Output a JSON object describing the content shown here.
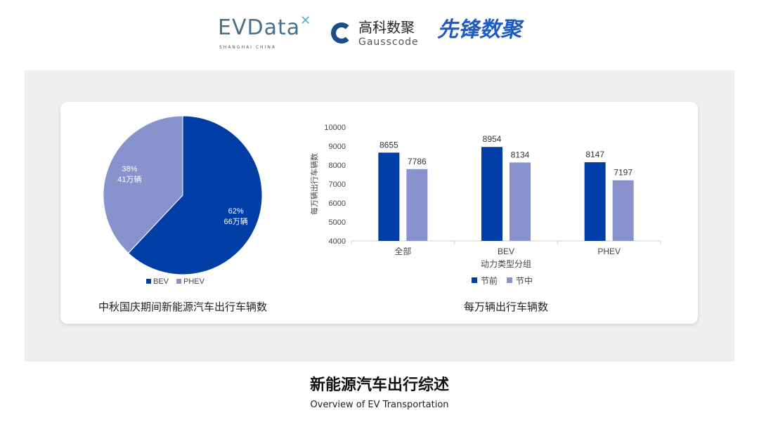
{
  "logos": {
    "evdata": "EVData",
    "evdata_sub": "SHANGHAI CHINA",
    "gauss_cn": "高科数聚",
    "gauss_en": "Gausscode",
    "xianfeng": "先锋数聚"
  },
  "colors": {
    "dark": "#003da5",
    "light": "#8893cd"
  },
  "chart_data": [
    {
      "type": "pie",
      "title": "中秋国庆期间新能源汽车出行车辆数",
      "slices": [
        {
          "name": "BEV",
          "percent": 62,
          "label_pct": "62%",
          "label_val": "66万辆",
          "color": "#003da5"
        },
        {
          "name": "PHEV",
          "percent": 38,
          "label_pct": "38%",
          "label_val": "41万辆",
          "color": "#8893cd"
        }
      ],
      "legend": "bottom"
    },
    {
      "type": "bar",
      "title": "每万辆出行车辆数",
      "xlabel": "动力类型分组",
      "ylabel": "每万辆出行车辆数",
      "categories": [
        "全部",
        "BEV",
        "PHEV"
      ],
      "series": [
        {
          "name": "节前",
          "values": [
            8655,
            8954,
            8147
          ],
          "color": "#003da5"
        },
        {
          "name": "节中",
          "values": [
            7786,
            8134,
            7197
          ],
          "color": "#8893cd"
        }
      ],
      "ylim": [
        4000,
        10000
      ],
      "yticks": [
        "4000",
        "5000",
        "6000",
        "7000",
        "8000",
        "9000",
        "10000"
      ],
      "legend": "bottom",
      "grid": false
    }
  ],
  "footer": {
    "title": "新能源汽车出行综述",
    "subtitle": "Overview of EV Transportation"
  }
}
